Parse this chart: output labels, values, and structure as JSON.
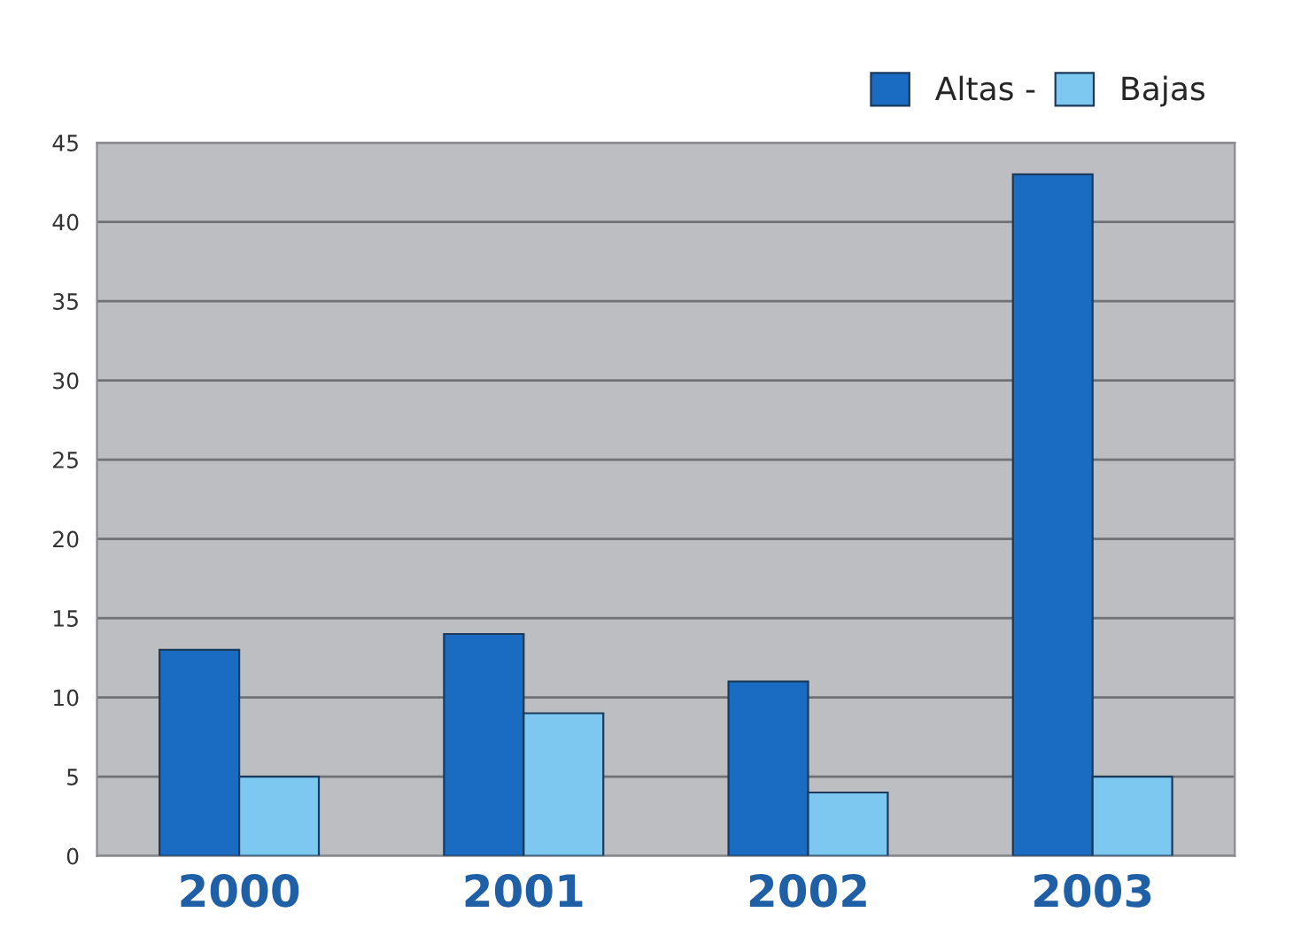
{
  "chart_data": {
    "type": "bar",
    "categories": [
      "2000",
      "2001",
      "2002",
      "2003"
    ],
    "series": [
      {
        "name": "Altas -",
        "color": "#1a6cc2",
        "values": [
          13,
          14,
          11,
          43
        ]
      },
      {
        "name": "Bajas",
        "color": "#7cc8f0",
        "values": [
          5,
          9,
          4,
          5
        ]
      }
    ],
    "ylim": [
      0,
      45
    ],
    "yticks": [
      0,
      5,
      10,
      15,
      20,
      25,
      30,
      35,
      40,
      45
    ],
    "grid": "y",
    "legend": "top right"
  }
}
